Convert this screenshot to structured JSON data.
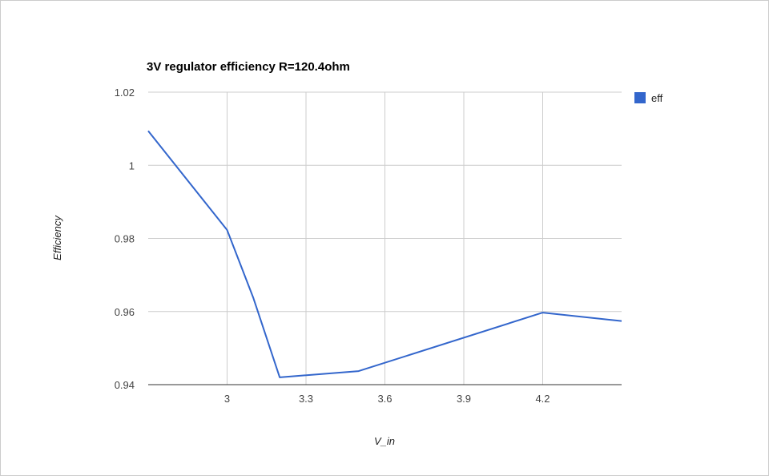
{
  "chart_data": {
    "type": "line",
    "title": "3V regulator efficiency R=120.4ohm",
    "xlabel": "V_in",
    "ylabel": "Efficiency",
    "xlim": [
      2.7,
      4.5
    ],
    "ylim": [
      0.94,
      1.02
    ],
    "x_ticks": [
      3,
      3.3,
      3.6,
      3.9,
      4.2
    ],
    "x_tick_labels": [
      "3",
      "3.3",
      "3.6",
      "3.9",
      "4.2"
    ],
    "y_ticks": [
      0.94,
      0.96,
      0.98,
      1.0,
      1.02
    ],
    "y_tick_labels": [
      "0.94",
      "0.96",
      "0.98",
      "1",
      "1.02"
    ],
    "grid": true,
    "legend_position": "right",
    "series": [
      {
        "name": "eff",
        "color": "#3366cc",
        "x": [
          2.7,
          3.0,
          3.1,
          3.2,
          3.5,
          4.2,
          4.5
        ],
        "y": [
          1.0094,
          0.9823,
          0.9637,
          0.942,
          0.9437,
          0.9597,
          0.9574
        ]
      }
    ]
  }
}
